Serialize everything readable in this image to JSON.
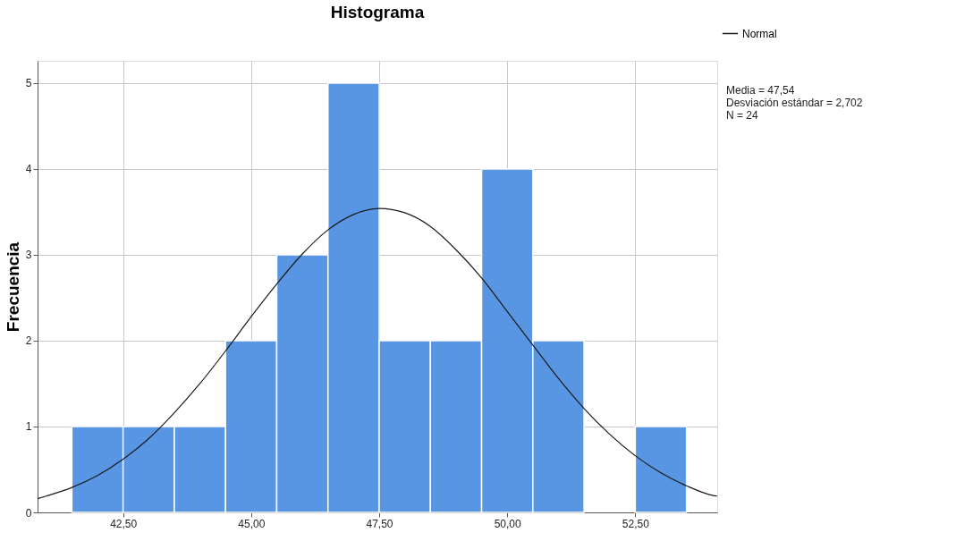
{
  "chart_data": {
    "type": "histogram",
    "title": "Histograma",
    "ylabel": "Frecuencia",
    "bins": [
      41.5,
      42.5,
      43.5,
      44.5,
      45.5,
      46.5,
      47.5,
      48.5,
      49.5,
      50.5,
      51.5,
      52.5,
      53.5
    ],
    "values": [
      1,
      1,
      1,
      2,
      3,
      5,
      2,
      2,
      4,
      2,
      0,
      1
    ],
    "color": "#5895e3",
    "series": [
      {
        "type": "line",
        "name": "Normal",
        "color": "#1a1a1a",
        "x": [
          40.83,
          41.0,
          41.5,
          42.0,
          42.5,
          43.0,
          43.5,
          44.0,
          44.5,
          45.0,
          45.5,
          46.0,
          46.5,
          47.0,
          47.5,
          48.0,
          48.5,
          49.0,
          49.5,
          50.0,
          50.5,
          51.0,
          51.5,
          52.0,
          52.5,
          53.0,
          53.5,
          54.0,
          54.1
        ],
        "values": [
          0.16,
          0.19,
          0.29,
          0.43,
          0.62,
          0.86,
          1.16,
          1.5,
          1.88,
          2.28,
          2.66,
          3.01,
          3.29,
          3.47,
          3.54,
          3.49,
          3.33,
          3.06,
          2.73,
          2.34,
          1.95,
          1.56,
          1.21,
          0.91,
          0.66,
          0.46,
          0.31,
          0.2,
          0.19
        ]
      }
    ],
    "xlim": [
      40.83,
      54.1
    ],
    "xticks": [
      {
        "value": 42.5,
        "label": "42,50"
      },
      {
        "value": 45,
        "label": "45,00"
      },
      {
        "value": 47.5,
        "label": "47,50"
      },
      {
        "value": 50,
        "label": "50,00"
      },
      {
        "value": 52.5,
        "label": "52,50"
      }
    ],
    "ylim": [
      0,
      5.26
    ],
    "yticks": [
      0,
      1,
      2,
      3,
      4,
      5
    ],
    "grid": true,
    "legend": "top right",
    "annotations": [
      "Media = 47,54",
      "Desviación estándar = 2,702",
      "N = 24"
    ]
  }
}
